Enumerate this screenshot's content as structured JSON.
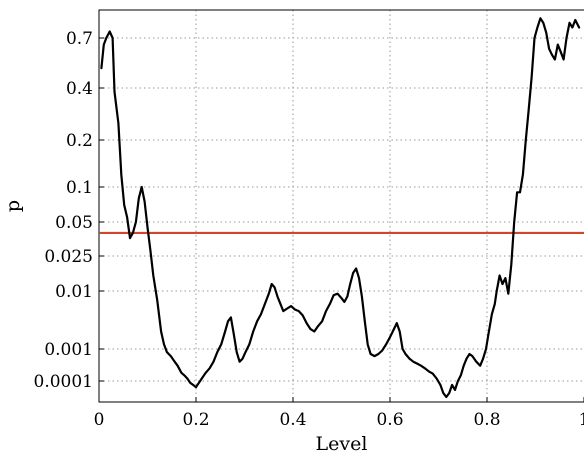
{
  "chart_data": {
    "type": "line",
    "title": "",
    "xlabel": "Level",
    "ylabel": "p",
    "grid": true,
    "xlim": [
      0,
      1
    ],
    "x_ticks": [
      {
        "value": 0,
        "label": "0"
      },
      {
        "value": 0.2,
        "label": "0.2"
      },
      {
        "value": 0.4,
        "label": "0.4"
      },
      {
        "value": 0.6,
        "label": "0.6"
      },
      {
        "value": 0.8,
        "label": "0.8"
      },
      {
        "value": 1,
        "label": "1"
      }
    ],
    "y_ticks": [
      {
        "value": 0.7,
        "label": "0.7"
      },
      {
        "value": 0.4,
        "label": "0.4"
      },
      {
        "value": 0.2,
        "label": "0.2"
      },
      {
        "value": 0.1,
        "label": "0.1"
      },
      {
        "value": 0.05,
        "label": "0.05"
      },
      {
        "value": 0.025,
        "label": "0.025"
      },
      {
        "value": 0.01,
        "label": "0.01"
      },
      {
        "value": 0.001,
        "label": "0.001"
      },
      {
        "value": 0.0001,
        "label": "0.0001"
      }
    ],
    "threshold": {
      "value": 0.04,
      "color": "#d4442a"
    },
    "series": [
      {
        "color": "#000000",
        "points": [
          [
            0.005,
            0.5
          ],
          [
            0.01,
            0.65
          ],
          [
            0.015,
            0.7
          ],
          [
            0.022,
            0.76
          ],
          [
            0.028,
            0.7
          ],
          [
            0.032,
            0.38
          ],
          [
            0.04,
            0.25
          ],
          [
            0.046,
            0.12
          ],
          [
            0.052,
            0.07
          ],
          [
            0.058,
            0.055
          ],
          [
            0.064,
            0.036
          ],
          [
            0.07,
            0.04
          ],
          [
            0.076,
            0.05
          ],
          [
            0.082,
            0.08
          ],
          [
            0.088,
            0.1
          ],
          [
            0.094,
            0.075
          ],
          [
            0.1,
            0.045
          ],
          [
            0.106,
            0.028
          ],
          [
            0.112,
            0.015
          ],
          [
            0.12,
            0.007
          ],
          [
            0.128,
            0.002
          ],
          [
            0.134,
            0.0012
          ],
          [
            0.14,
            0.0008
          ],
          [
            0.148,
            0.0006
          ],
          [
            0.156,
            0.0004
          ],
          [
            0.162,
            0.0003
          ],
          [
            0.17,
            0.00018
          ],
          [
            0.176,
            0.00015
          ],
          [
            0.182,
            0.00012
          ],
          [
            0.188,
            9e-05
          ],
          [
            0.194,
            8e-05
          ],
          [
            0.2,
            7e-05
          ],
          [
            0.206,
            9e-05
          ],
          [
            0.212,
            0.00012
          ],
          [
            0.22,
            0.00018
          ],
          [
            0.228,
            0.00025
          ],
          [
            0.236,
            0.0004
          ],
          [
            0.244,
            0.0008
          ],
          [
            0.252,
            0.0012
          ],
          [
            0.26,
            0.002
          ],
          [
            0.266,
            0.003
          ],
          [
            0.272,
            0.0035
          ],
          [
            0.278,
            0.0018
          ],
          [
            0.284,
            0.0008
          ],
          [
            0.29,
            0.0004
          ],
          [
            0.296,
            0.0005
          ],
          [
            0.302,
            0.0008
          ],
          [
            0.31,
            0.0012
          ],
          [
            0.318,
            0.002
          ],
          [
            0.326,
            0.003
          ],
          [
            0.334,
            0.004
          ],
          [
            0.342,
            0.006
          ],
          [
            0.35,
            0.009
          ],
          [
            0.356,
            0.012
          ],
          [
            0.362,
            0.011
          ],
          [
            0.368,
            0.008
          ],
          [
            0.374,
            0.006
          ],
          [
            0.38,
            0.0045
          ],
          [
            0.388,
            0.005
          ],
          [
            0.396,
            0.0055
          ],
          [
            0.404,
            0.0048
          ],
          [
            0.412,
            0.0045
          ],
          [
            0.42,
            0.0038
          ],
          [
            0.428,
            0.0028
          ],
          [
            0.436,
            0.0022
          ],
          [
            0.444,
            0.002
          ],
          [
            0.452,
            0.0025
          ],
          [
            0.46,
            0.003
          ],
          [
            0.468,
            0.0045
          ],
          [
            0.476,
            0.006
          ],
          [
            0.484,
            0.0085
          ],
          [
            0.492,
            0.009
          ],
          [
            0.5,
            0.0075
          ],
          [
            0.506,
            0.0065
          ],
          [
            0.512,
            0.008
          ],
          [
            0.518,
            0.012
          ],
          [
            0.524,
            0.016
          ],
          [
            0.53,
            0.018
          ],
          [
            0.536,
            0.014
          ],
          [
            0.542,
            0.008
          ],
          [
            0.548,
            0.003
          ],
          [
            0.554,
            0.0012
          ],
          [
            0.56,
            0.0007
          ],
          [
            0.568,
            0.0006
          ],
          [
            0.576,
            0.0007
          ],
          [
            0.584,
            0.0009
          ],
          [
            0.592,
            0.0012
          ],
          [
            0.6,
            0.0016
          ],
          [
            0.608,
            0.0022
          ],
          [
            0.614,
            0.0028
          ],
          [
            0.62,
            0.002
          ],
          [
            0.626,
            0.001
          ],
          [
            0.632,
            0.0007
          ],
          [
            0.64,
            0.0005
          ],
          [
            0.648,
            0.0004
          ],
          [
            0.656,
            0.00035
          ],
          [
            0.664,
            0.0003
          ],
          [
            0.672,
            0.00025
          ],
          [
            0.68,
            0.0002
          ],
          [
            0.688,
            0.00017
          ],
          [
            0.696,
            0.00012
          ],
          [
            0.704,
            8e-05
          ],
          [
            0.71,
            5e-05
          ],
          [
            0.716,
            4e-05
          ],
          [
            0.722,
            5e-05
          ],
          [
            0.728,
            8e-05
          ],
          [
            0.734,
            6e-05
          ],
          [
            0.74,
            0.0001
          ],
          [
            0.746,
            0.00015
          ],
          [
            0.752,
            0.0003
          ],
          [
            0.758,
            0.0005
          ],
          [
            0.764,
            0.0007
          ],
          [
            0.77,
            0.0006
          ],
          [
            0.778,
            0.0004
          ],
          [
            0.786,
            0.0003
          ],
          [
            0.792,
            0.0005
          ],
          [
            0.798,
            0.001
          ],
          [
            0.804,
            0.002
          ],
          [
            0.81,
            0.004
          ],
          [
            0.816,
            0.006
          ],
          [
            0.82,
            0.01
          ],
          [
            0.826,
            0.015
          ],
          [
            0.832,
            0.012
          ],
          [
            0.838,
            0.014
          ],
          [
            0.844,
            0.009
          ],
          [
            0.85,
            0.02
          ],
          [
            0.856,
            0.05
          ],
          [
            0.862,
            0.09
          ],
          [
            0.868,
            0.09
          ],
          [
            0.874,
            0.12
          ],
          [
            0.88,
            0.2
          ],
          [
            0.886,
            0.3
          ],
          [
            0.892,
            0.45
          ],
          [
            0.898,
            0.7
          ],
          [
            0.904,
            0.8
          ],
          [
            0.91,
            0.9
          ],
          [
            0.916,
            0.85
          ],
          [
            0.922,
            0.75
          ],
          [
            0.928,
            0.62
          ],
          [
            0.934,
            0.58
          ],
          [
            0.94,
            0.55
          ],
          [
            0.946,
            0.65
          ],
          [
            0.952,
            0.6
          ],
          [
            0.958,
            0.55
          ],
          [
            0.964,
            0.7
          ],
          [
            0.97,
            0.85
          ],
          [
            0.976,
            0.8
          ],
          [
            0.982,
            0.88
          ],
          [
            0.99,
            0.8
          ]
        ]
      }
    ]
  }
}
